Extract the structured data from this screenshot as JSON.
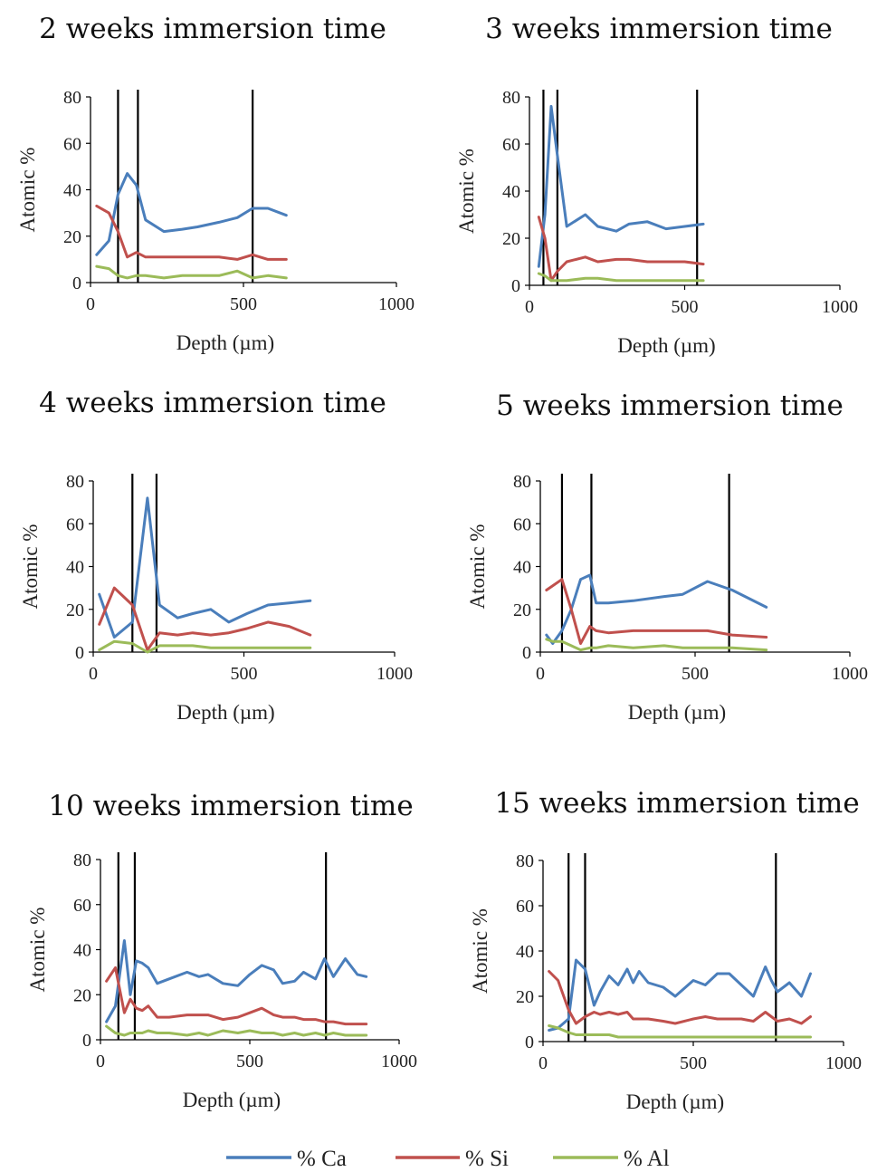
{
  "chart_data": [
    {
      "type": "line",
      "title": "2 weeks immersion time",
      "xlabel": "Depth (µm)",
      "ylabel": "Atomic %",
      "xlim": [
        0,
        1000
      ],
      "ylim": [
        0,
        80
      ],
      "xticks": [
        "0",
        "500",
        "1000"
      ],
      "yticks": [
        "0",
        "20",
        "40",
        "60",
        "80"
      ],
      "vlines": [
        90,
        155,
        530
      ],
      "series": [
        {
          "name": "% Ca",
          "color": "#4a7ebb",
          "x": [
            20,
            60,
            90,
            120,
            150,
            180,
            240,
            300,
            350,
            420,
            480,
            530,
            580,
            640
          ],
          "y": [
            12,
            18,
            38,
            47,
            42,
            27,
            22,
            23,
            24,
            26,
            28,
            32,
            32,
            29
          ]
        },
        {
          "name": "% Si",
          "color": "#c0504d",
          "x": [
            20,
            60,
            90,
            120,
            150,
            180,
            240,
            300,
            350,
            420,
            480,
            530,
            580,
            640
          ],
          "y": [
            33,
            30,
            22,
            11,
            13,
            11,
            11,
            11,
            11,
            11,
            10,
            12,
            10,
            10
          ]
        },
        {
          "name": "% Al",
          "color": "#9bbb59",
          "x": [
            20,
            60,
            90,
            120,
            150,
            180,
            240,
            300,
            350,
            420,
            480,
            530,
            580,
            640
          ],
          "y": [
            7,
            6,
            3,
            2,
            3,
            3,
            2,
            3,
            3,
            3,
            5,
            2,
            3,
            2
          ]
        }
      ]
    },
    {
      "type": "line",
      "title": "3 weeks immersion time",
      "xlabel": "Depth (µm)",
      "ylabel": "Atomic %",
      "xlim": [
        0,
        1000
      ],
      "ylim": [
        0,
        80
      ],
      "xticks": [
        "0",
        "500",
        "1000"
      ],
      "yticks": [
        "0",
        "20",
        "40",
        "60",
        "80"
      ],
      "vlines": [
        45,
        90,
        540
      ],
      "series": [
        {
          "name": "% Ca",
          "color": "#4a7ebb",
          "x": [
            30,
            50,
            70,
            90,
            120,
            180,
            220,
            280,
            320,
            380,
            440,
            500,
            560
          ],
          "y": [
            8,
            30,
            76,
            55,
            25,
            30,
            25,
            23,
            26,
            27,
            24,
            25,
            26
          ]
        },
        {
          "name": "% Si",
          "color": "#c0504d",
          "x": [
            30,
            50,
            70,
            90,
            120,
            180,
            220,
            280,
            320,
            380,
            440,
            500,
            560
          ],
          "y": [
            29,
            20,
            2,
            6,
            10,
            12,
            10,
            11,
            11,
            10,
            10,
            10,
            9
          ]
        },
        {
          "name": "% Al",
          "color": "#9bbb59",
          "x": [
            30,
            50,
            70,
            90,
            120,
            180,
            220,
            280,
            320,
            380,
            440,
            500,
            560
          ],
          "y": [
            5,
            4,
            2,
            2,
            2,
            3,
            3,
            2,
            2,
            2,
            2,
            2,
            2
          ]
        }
      ]
    },
    {
      "type": "line",
      "title": "4 weeks immersion time",
      "xlabel": "Depth (µm)",
      "ylabel": "Atomic %",
      "xlim": [
        0,
        1000
      ],
      "ylim": [
        0,
        80
      ],
      "xticks": [
        "0",
        "500",
        "1000"
      ],
      "yticks": [
        "0",
        "20",
        "40",
        "60",
        "80"
      ],
      "vlines": [
        130,
        210
      ],
      "series": [
        {
          "name": "% Ca",
          "color": "#4a7ebb",
          "x": [
            20,
            70,
            130,
            180,
            220,
            280,
            330,
            390,
            450,
            510,
            580,
            650,
            720
          ],
          "y": [
            27,
            7,
            14,
            72,
            22,
            16,
            18,
            20,
            14,
            18,
            22,
            23,
            24
          ]
        },
        {
          "name": "% Si",
          "color": "#c0504d",
          "x": [
            20,
            70,
            130,
            180,
            220,
            280,
            330,
            390,
            450,
            510,
            580,
            650,
            720
          ],
          "y": [
            13,
            30,
            22,
            1,
            9,
            8,
            9,
            8,
            9,
            11,
            14,
            12,
            8
          ]
        },
        {
          "name": "% Al",
          "color": "#9bbb59",
          "x": [
            20,
            70,
            130,
            180,
            220,
            280,
            330,
            390,
            450,
            510,
            580,
            650,
            720
          ],
          "y": [
            1,
            5,
            4,
            0,
            3,
            3,
            3,
            2,
            2,
            2,
            2,
            2,
            2
          ]
        }
      ]
    },
    {
      "type": "line",
      "title": "5 weeks immersion time",
      "xlabel": "Depth (µm)",
      "ylabel": "Atomic %",
      "xlim": [
        0,
        1000
      ],
      "ylim": [
        0,
        80
      ],
      "xticks": [
        "0",
        "500",
        "1000"
      ],
      "yticks": [
        "0",
        "20",
        "40",
        "60",
        "80"
      ],
      "vlines": [
        70,
        165,
        610
      ],
      "series": [
        {
          "name": "% Ca",
          "color": "#4a7ebb",
          "x": [
            20,
            40,
            70,
            100,
            130,
            160,
            180,
            220,
            300,
            400,
            460,
            540,
            620,
            730
          ],
          "y": [
            8,
            4,
            10,
            20,
            34,
            36,
            23,
            23,
            24,
            26,
            27,
            33,
            29,
            21
          ]
        },
        {
          "name": "% Si",
          "color": "#c0504d",
          "x": [
            20,
            40,
            70,
            100,
            130,
            160,
            180,
            220,
            300,
            400,
            460,
            540,
            620,
            730
          ],
          "y": [
            29,
            31,
            34,
            20,
            4,
            12,
            10,
            9,
            10,
            10,
            10,
            10,
            8,
            7
          ]
        },
        {
          "name": "% Al",
          "color": "#9bbb59",
          "x": [
            20,
            40,
            70,
            100,
            130,
            160,
            180,
            220,
            300,
            400,
            460,
            540,
            620,
            730
          ],
          "y": [
            6,
            5,
            5,
            3,
            1,
            2,
            2,
            3,
            2,
            3,
            2,
            2,
            2,
            1
          ]
        }
      ]
    },
    {
      "type": "line",
      "title": "10 weeks immersion time",
      "xlabel": "Depth (µm)",
      "ylabel": "Atomic %",
      "xlim": [
        0,
        1000
      ],
      "ylim": [
        0,
        80
      ],
      "xticks": [
        "0",
        "500",
        "1000"
      ],
      "yticks": [
        "0",
        "20",
        "40",
        "60",
        "80"
      ],
      "vlines": [
        60,
        115,
        755
      ],
      "series": [
        {
          "name": "% Ca",
          "color": "#4a7ebb",
          "x": [
            20,
            50,
            80,
            100,
            120,
            140,
            160,
            190,
            230,
            290,
            330,
            360,
            410,
            460,
            500,
            540,
            580,
            610,
            650,
            680,
            720,
            750,
            780,
            820,
            860,
            890
          ],
          "y": [
            8,
            15,
            44,
            20,
            35,
            34,
            32,
            25,
            27,
            30,
            28,
            29,
            25,
            24,
            29,
            33,
            31,
            25,
            26,
            30,
            27,
            36,
            28,
            36,
            29,
            28
          ]
        },
        {
          "name": "% Si",
          "color": "#c0504d",
          "x": [
            20,
            50,
            80,
            100,
            120,
            140,
            160,
            190,
            230,
            290,
            330,
            360,
            410,
            460,
            500,
            540,
            580,
            610,
            650,
            680,
            720,
            750,
            780,
            820,
            860,
            890
          ],
          "y": [
            26,
            32,
            12,
            18,
            14,
            13,
            15,
            10,
            10,
            11,
            11,
            11,
            9,
            10,
            12,
            14,
            11,
            10,
            10,
            9,
            9,
            8,
            8,
            7,
            7,
            7
          ]
        },
        {
          "name": "% Al",
          "color": "#9bbb59",
          "x": [
            20,
            50,
            80,
            100,
            120,
            140,
            160,
            190,
            230,
            290,
            330,
            360,
            410,
            460,
            500,
            540,
            580,
            610,
            650,
            680,
            720,
            750,
            780,
            820,
            860,
            890
          ],
          "y": [
            6,
            3,
            2,
            3,
            3,
            3,
            4,
            3,
            3,
            2,
            3,
            2,
            4,
            3,
            4,
            3,
            3,
            2,
            3,
            2,
            3,
            2,
            3,
            2,
            2,
            2
          ]
        }
      ]
    },
    {
      "type": "line",
      "title": "15 weeks immersion time",
      "xlabel": "Depth (µm)",
      "ylabel": "Atomic %",
      "xlim": [
        0,
        1000
      ],
      "ylim": [
        0,
        80
      ],
      "xticks": [
        "0",
        "500",
        "1000"
      ],
      "yticks": [
        "0",
        "20",
        "40",
        "60",
        "80"
      ],
      "vlines": [
        85,
        140,
        775
      ],
      "series": [
        {
          "name": "% Ca",
          "color": "#4a7ebb",
          "x": [
            20,
            50,
            85,
            110,
            140,
            170,
            190,
            220,
            250,
            280,
            300,
            320,
            350,
            400,
            440,
            500,
            540,
            580,
            620,
            660,
            700,
            740,
            760,
            780,
            820,
            860,
            890
          ],
          "y": [
            5,
            6,
            10,
            36,
            32,
            16,
            22,
            29,
            25,
            32,
            26,
            31,
            26,
            24,
            20,
            27,
            25,
            30,
            30,
            25,
            20,
            33,
            27,
            22,
            26,
            20,
            30
          ]
        },
        {
          "name": "% Si",
          "color": "#c0504d",
          "x": [
            20,
            50,
            85,
            110,
            140,
            170,
            190,
            220,
            250,
            280,
            300,
            320,
            350,
            400,
            440,
            500,
            540,
            580,
            620,
            660,
            700,
            740,
            760,
            780,
            820,
            860,
            890
          ],
          "y": [
            31,
            27,
            14,
            8,
            11,
            13,
            12,
            13,
            12,
            13,
            10,
            10,
            10,
            9,
            8,
            10,
            11,
            10,
            10,
            10,
            9,
            13,
            11,
            9,
            10,
            8,
            11
          ]
        },
        {
          "name": "% Al",
          "color": "#9bbb59",
          "x": [
            20,
            50,
            85,
            110,
            140,
            170,
            190,
            220,
            250,
            280,
            300,
            320,
            350,
            400,
            440,
            500,
            540,
            580,
            620,
            660,
            700,
            740,
            760,
            780,
            820,
            860,
            890
          ],
          "y": [
            7,
            6,
            4,
            3,
            3,
            3,
            3,
            3,
            2,
            2,
            2,
            2,
            2,
            2,
            2,
            2,
            2,
            2,
            2,
            2,
            2,
            2,
            2,
            2,
            2,
            2,
            2
          ]
        }
      ]
    }
  ],
  "legend": [
    {
      "label": "% Ca",
      "color": "#4a7ebb"
    },
    {
      "label": "% Si",
      "color": "#c0504d"
    },
    {
      "label": "% Al",
      "color": "#9bbb59"
    }
  ]
}
